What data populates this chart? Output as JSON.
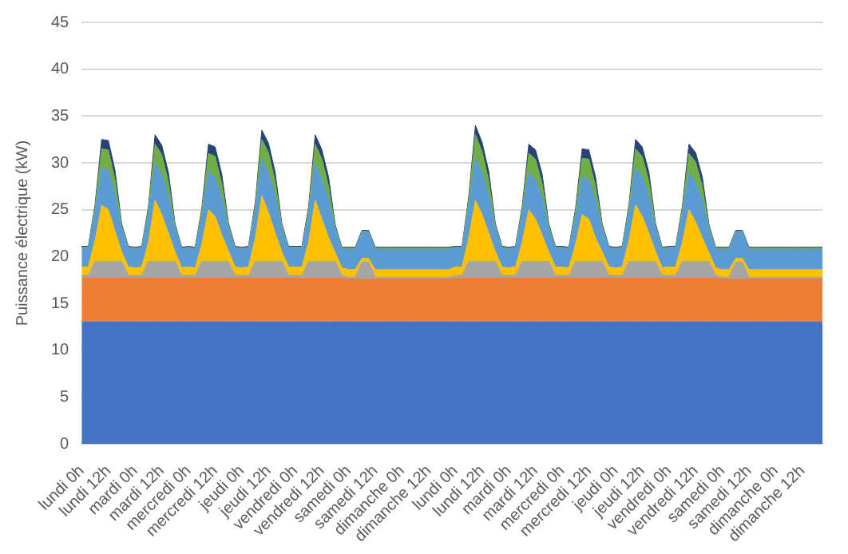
{
  "chart_data": {
    "type": "area",
    "stacked": true,
    "ylabel": "Puissance électrique (kW)",
    "ylim": [
      0,
      45
    ],
    "yticks": [
      0,
      5,
      10,
      15,
      20,
      25,
      30,
      35,
      40,
      45
    ],
    "grid": "y",
    "legend": false,
    "categories": [
      "lundi 0h",
      null,
      null,
      null,
      "lundi 12h",
      null,
      null,
      null,
      "mardi 0h",
      null,
      null,
      null,
      "mardi 12h",
      null,
      null,
      null,
      "mercredi 0h",
      null,
      null,
      null,
      "mercredi 12h",
      null,
      null,
      null,
      "jeudi 0h",
      null,
      null,
      null,
      "jeudi 12h",
      null,
      null,
      null,
      "vendredi 0h",
      null,
      null,
      null,
      "vendredi 12h",
      null,
      null,
      null,
      "samedi 0h",
      null,
      null,
      null,
      "samedi 12h",
      null,
      null,
      null,
      "dimanche 0h",
      null,
      null,
      null,
      "dimanche 12h",
      null,
      null,
      null,
      "lundi 0h",
      null,
      null,
      null,
      "lundi 12h",
      null,
      null,
      null,
      "mardi 0h",
      null,
      null,
      null,
      "mardi 12h",
      null,
      null,
      null,
      "mercredi 0h",
      null,
      null,
      null,
      "mercredi 12h",
      null,
      null,
      null,
      "jeudi 0h",
      null,
      null,
      null,
      "jeudi 12h",
      null,
      null,
      null,
      "vendredi 0h",
      null,
      null,
      null,
      "vendredi 12h",
      null,
      null,
      null,
      "samedi 0h",
      null,
      null,
      null,
      "samedi 12h",
      null,
      null,
      null,
      "dimanche 0h",
      null,
      null,
      null,
      "dimanche 12h",
      null,
      null,
      null
    ],
    "series": [
      {
        "color": "#4472c4",
        "values": [
          13,
          13,
          13,
          13,
          13,
          13,
          13,
          13,
          13,
          13,
          13,
          13,
          13,
          13,
          13,
          13,
          13,
          13,
          13,
          13,
          13,
          13,
          13,
          13,
          13,
          13,
          13,
          13,
          13,
          13,
          13,
          13,
          13,
          13,
          13,
          13,
          13,
          13,
          13,
          13,
          13,
          13,
          13,
          13,
          13,
          13,
          13,
          13,
          13,
          13,
          13,
          13,
          13,
          13,
          13,
          13,
          13,
          13,
          13,
          13,
          13,
          13,
          13,
          13,
          13,
          13,
          13,
          13,
          13,
          13,
          13,
          13,
          13,
          13,
          13,
          13,
          13,
          13,
          13,
          13,
          13,
          13,
          13,
          13,
          13,
          13,
          13,
          13,
          13,
          13,
          13,
          13,
          13,
          13,
          13,
          13,
          13,
          13,
          13,
          13,
          13,
          13,
          13,
          13,
          13,
          13,
          13,
          13,
          13,
          13,
          13,
          13
        ]
      },
      {
        "color": "#ed7d31",
        "values": [
          4.7,
          4.7,
          4.7,
          4.7,
          4.7,
          4.7,
          4.7,
          4.7,
          4.7,
          4.7,
          4.7,
          4.7,
          4.7,
          4.7,
          4.7,
          4.7,
          4.7,
          4.7,
          4.7,
          4.7,
          4.7,
          4.7,
          4.7,
          4.7,
          4.7,
          4.7,
          4.7,
          4.7,
          4.7,
          4.7,
          4.7,
          4.7,
          4.7,
          4.7,
          4.7,
          4.7,
          4.7,
          4.7,
          4.7,
          4.7,
          4.6,
          4.6,
          4.6,
          4.6,
          4.6,
          4.6,
          4.6,
          4.6,
          4.6,
          4.6,
          4.6,
          4.6,
          4.6,
          4.6,
          4.6,
          4.6,
          4.7,
          4.7,
          4.7,
          4.7,
          4.7,
          4.7,
          4.7,
          4.7,
          4.7,
          4.7,
          4.7,
          4.7,
          4.7,
          4.7,
          4.7,
          4.7,
          4.7,
          4.7,
          4.7,
          4.7,
          4.7,
          4.7,
          4.7,
          4.7,
          4.7,
          4.7,
          4.7,
          4.7,
          4.7,
          4.7,
          4.7,
          4.7,
          4.7,
          4.7,
          4.7,
          4.7,
          4.7,
          4.7,
          4.7,
          4.7,
          4.6,
          4.6,
          4.6,
          4.6,
          4.6,
          4.6,
          4.6,
          4.6,
          4.6,
          4.6,
          4.6,
          4.6,
          4.6,
          4.6,
          4.6,
          4.6
        ]
      },
      {
        "color": "#a5a5a5",
        "values": [
          0.3,
          0.3,
          1.8,
          1.8,
          1.8,
          1.8,
          1.8,
          0.3,
          0.3,
          0.3,
          1.8,
          1.8,
          1.8,
          1.8,
          1.8,
          0.3,
          0.3,
          0.3,
          1.8,
          1.8,
          1.8,
          1.8,
          1.8,
          0.3,
          0.3,
          0.3,
          1.8,
          1.8,
          1.8,
          1.8,
          1.8,
          0.3,
          0.3,
          0.3,
          1.8,
          1.8,
          1.8,
          1.8,
          1.8,
          0.3,
          0.2,
          0.2,
          1.8,
          1.8,
          0.2,
          0.2,
          0.2,
          0.2,
          0.2,
          0.2,
          0.2,
          0.2,
          0.2,
          0.2,
          0.2,
          0.2,
          0.3,
          0.3,
          1.8,
          1.8,
          1.8,
          1.8,
          1.8,
          0.3,
          0.3,
          0.3,
          1.8,
          1.8,
          1.8,
          1.8,
          1.8,
          0.3,
          0.3,
          0.3,
          1.8,
          1.8,
          1.8,
          1.8,
          1.8,
          0.3,
          0.3,
          0.3,
          1.8,
          1.8,
          1.8,
          1.8,
          1.8,
          0.3,
          0.3,
          0.3,
          1.8,
          1.8,
          1.8,
          1.8,
          1.8,
          0.3,
          0.2,
          0.2,
          1.8,
          1.8,
          0.2,
          0.2,
          0.2,
          0.2,
          0.2,
          0.2,
          0.2,
          0.2,
          0.2,
          0.2,
          0.2,
          0.2
        ]
      },
      {
        "color": "#ffc000",
        "values": [
          0.9,
          0.9,
          2.2,
          6.0,
          5.5,
          3.2,
          1.0,
          0.9,
          0.8,
          0.9,
          2.0,
          6.5,
          5.0,
          3.0,
          1.0,
          0.8,
          0.9,
          0.8,
          1.8,
          5.5,
          4.8,
          2.8,
          1.1,
          0.9,
          0.8,
          0.9,
          2.4,
          7.0,
          5.2,
          3.0,
          1.0,
          0.9,
          0.9,
          0.9,
          2.0,
          6.5,
          4.5,
          2.5,
          0.9,
          0.8,
          0.8,
          0.8,
          0.4,
          0.4,
          0.8,
          0.8,
          0.8,
          0.8,
          0.8,
          0.8,
          0.8,
          0.8,
          0.8,
          0.8,
          0.8,
          0.8,
          0.9,
          0.9,
          2.5,
          6.5,
          5.0,
          3.0,
          1.0,
          0.9,
          0.8,
          0.9,
          2.0,
          5.5,
          4.5,
          2.8,
          1.0,
          0.9,
          0.9,
          0.8,
          1.8,
          5.0,
          4.5,
          2.5,
          1.0,
          0.9,
          0.8,
          0.9,
          2.2,
          6.0,
          4.8,
          3.0,
          1.0,
          0.8,
          0.9,
          0.9,
          2.0,
          5.5,
          4.2,
          2.5,
          0.9,
          0.8,
          0.8,
          0.8,
          0.4,
          0.4,
          0.8,
          0.8,
          0.8,
          0.8,
          0.8,
          0.8,
          0.8,
          0.8,
          0.8,
          0.8,
          0.8,
          0.8
        ]
      },
      {
        "color": "#5b9bd5",
        "values": [
          2.0,
          2.0,
          3.0,
          4.0,
          4.2,
          4.0,
          2.5,
          2.0,
          2.0,
          2.0,
          3.0,
          4.0,
          4.2,
          4.0,
          2.5,
          2.0,
          2.0,
          2.0,
          3.0,
          4.0,
          4.2,
          4.0,
          2.5,
          2.0,
          2.0,
          2.0,
          3.0,
          4.0,
          4.2,
          4.0,
          2.5,
          2.0,
          2.0,
          2.0,
          3.0,
          4.0,
          4.2,
          4.0,
          2.5,
          2.0,
          2.2,
          2.2,
          2.8,
          2.8,
          2.2,
          2.2,
          2.2,
          2.2,
          2.2,
          2.2,
          2.2,
          2.2,
          2.2,
          2.2,
          2.2,
          2.2,
          2.0,
          2.0,
          3.5,
          4.5,
          4.5,
          4.0,
          2.5,
          2.0,
          2.0,
          2.0,
          3.0,
          4.0,
          4.2,
          4.0,
          2.5,
          2.0,
          2.0,
          2.0,
          3.0,
          4.0,
          4.2,
          4.0,
          2.5,
          2.0,
          2.0,
          2.0,
          3.0,
          4.0,
          4.2,
          4.0,
          2.5,
          2.0,
          2.0,
          2.0,
          3.0,
          4.0,
          4.2,
          4.0,
          2.5,
          2.0,
          2.2,
          2.2,
          2.8,
          2.8,
          2.2,
          2.2,
          2.2,
          2.2,
          2.2,
          2.2,
          2.2,
          2.2,
          2.2,
          2.2,
          2.2,
          2.2
        ]
      },
      {
        "color": "#70ad47",
        "values": [
          0.1,
          0.1,
          0.5,
          2.0,
          2.2,
          1.5,
          0.3,
          0.1,
          0.1,
          0.1,
          0.5,
          2.0,
          2.2,
          1.5,
          0.3,
          0.1,
          0.1,
          0.1,
          0.5,
          2.0,
          2.2,
          1.5,
          0.3,
          0.1,
          0.1,
          0.1,
          0.5,
          2.0,
          2.2,
          1.5,
          0.3,
          0.1,
          0.1,
          0.1,
          0.5,
          2.0,
          2.2,
          1.5,
          0.3,
          0.1,
          0.1,
          0.1,
          0.1,
          0.1,
          0.1,
          0.1,
          0.1,
          0.1,
          0.1,
          0.1,
          0.1,
          0.1,
          0.1,
          0.1,
          0.1,
          0.1,
          0.1,
          0.1,
          0.6,
          2.5,
          2.2,
          1.6,
          0.3,
          0.1,
          0.1,
          0.1,
          0.5,
          2.0,
          2.2,
          1.5,
          0.3,
          0.1,
          0.1,
          0.1,
          0.5,
          2.0,
          2.2,
          1.5,
          0.3,
          0.1,
          0.1,
          0.1,
          0.5,
          2.0,
          2.2,
          1.5,
          0.3,
          0.1,
          0.1,
          0.1,
          0.5,
          2.0,
          2.2,
          1.5,
          0.3,
          0.1,
          0.1,
          0.1,
          0.1,
          0.1,
          0.1,
          0.1,
          0.1,
          0.1,
          0.1,
          0.1,
          0.1,
          0.1,
          0.1,
          0.1,
          0.1,
          0.1
        ]
      },
      {
        "color": "#264478",
        "values": [
          0.1,
          0.1,
          0.3,
          1.0,
          1.0,
          1.0,
          0.2,
          0.1,
          0.1,
          0.1,
          0.3,
          1.0,
          1.0,
          1.0,
          0.2,
          0.1,
          0.1,
          0.1,
          0.3,
          1.0,
          1.0,
          1.0,
          0.2,
          0.1,
          0.1,
          0.1,
          0.3,
          1.0,
          1.0,
          1.0,
          0.2,
          0.1,
          0.1,
          0.1,
          0.3,
          1.0,
          1.0,
          1.0,
          0.2,
          0.1,
          0.1,
          0.1,
          0.1,
          0.1,
          0.1,
          0.1,
          0.1,
          0.1,
          0.1,
          0.1,
          0.1,
          0.1,
          0.1,
          0.1,
          0.1,
          0.1,
          0.1,
          0.1,
          0.3,
          1.0,
          1.0,
          1.0,
          0.2,
          0.1,
          0.1,
          0.1,
          0.3,
          1.0,
          1.0,
          1.0,
          0.2,
          0.1,
          0.1,
          0.1,
          0.3,
          1.0,
          1.0,
          1.0,
          0.2,
          0.1,
          0.1,
          0.1,
          0.3,
          1.0,
          1.0,
          1.0,
          0.2,
          0.1,
          0.1,
          0.1,
          0.3,
          1.0,
          1.0,
          1.0,
          0.2,
          0.1,
          0.1,
          0.1,
          0.1,
          0.1,
          0.1,
          0.1,
          0.1,
          0.1,
          0.1,
          0.1,
          0.1,
          0.1,
          0.1,
          0.1,
          0.1,
          0.1
        ]
      }
    ]
  }
}
